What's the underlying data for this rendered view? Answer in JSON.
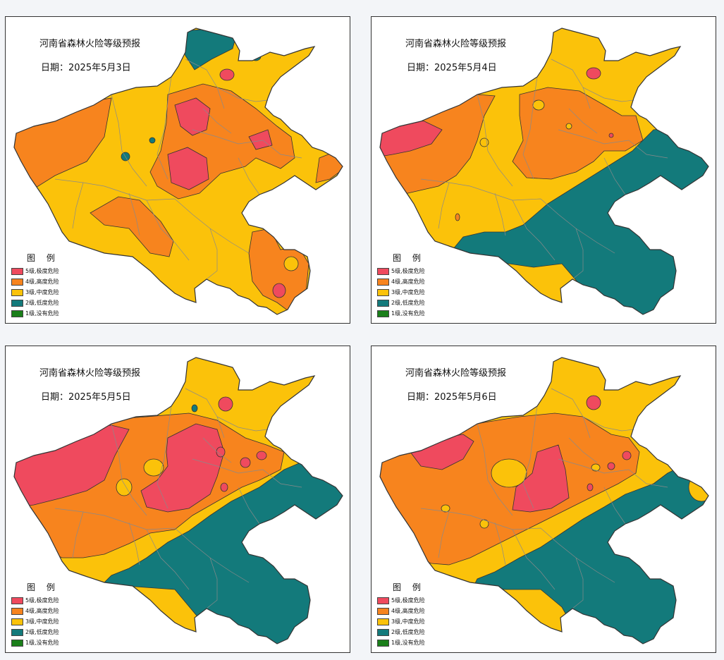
{
  "colors": {
    "level5": "#ef4a5e",
    "level4": "#f7841e",
    "level3": "#fbc20a",
    "level2": "#137a7b",
    "level1": "#1a7f1a",
    "county_line": "#8a8a8a",
    "outline": "#333333"
  },
  "legend": {
    "title": "图 例",
    "items": [
      {
        "level": 5,
        "label": "5级,极度危险"
      },
      {
        "level": 4,
        "label": "4级,高度危险"
      },
      {
        "level": 3,
        "label": "3级,中度危险"
      },
      {
        "level": 2,
        "label": "2级,低度危险"
      },
      {
        "level": 1,
        "label": "1级,没有危险"
      }
    ]
  },
  "maps": [
    {
      "title": "河南省森林火险等级预报",
      "date_label": "日期：2025年5月3日"
    },
    {
      "title": "河南省森林火险等级预报",
      "date_label": "日期：2025年5月4日"
    },
    {
      "title": "河南省森林火险等级预报",
      "date_label": "日期：2025年5月5日"
    },
    {
      "title": "河南省森林火险等级预报",
      "date_label": "日期：2025年5月6日"
    }
  ]
}
